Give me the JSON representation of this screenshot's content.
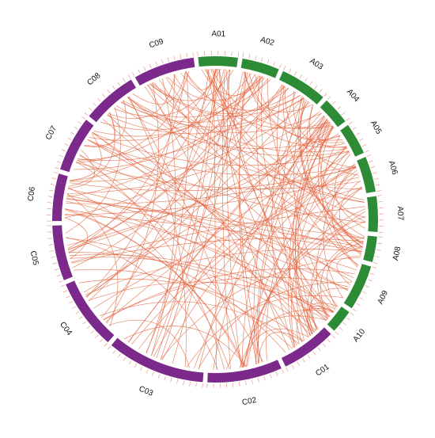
{
  "colors": {
    "A_genome": "#2E8B35",
    "C_genome": "#7B2A8C",
    "links": "#E2603A",
    "ticks": "#E8857A"
  },
  "chromosomes": [
    {
      "name": "A01",
      "genome": "A",
      "length": 1.0
    },
    {
      "name": "A02",
      "genome": "A",
      "length": 0.95
    },
    {
      "name": "A03",
      "genome": "A",
      "length": 1.2
    },
    {
      "name": "A04",
      "genome": "A",
      "length": 0.7
    },
    {
      "name": "A05",
      "genome": "A",
      "length": 0.8
    },
    {
      "name": "A06",
      "genome": "A",
      "length": 0.9
    },
    {
      "name": "A07",
      "genome": "A",
      "length": 0.9
    },
    {
      "name": "A08",
      "genome": "A",
      "length": 0.65
    },
    {
      "name": "A09",
      "genome": "A",
      "length": 1.15
    },
    {
      "name": "A10",
      "genome": "A",
      "length": 0.6
    },
    {
      "name": "C01",
      "genome": "C",
      "length": 1.4
    },
    {
      "name": "C02",
      "genome": "C",
      "length": 1.9
    },
    {
      "name": "C03",
      "genome": "C",
      "length": 2.5
    },
    {
      "name": "C04",
      "genome": "C",
      "length": 1.8
    },
    {
      "name": "C05",
      "genome": "C",
      "length": 1.4
    },
    {
      "name": "C06",
      "genome": "C",
      "length": 1.2
    },
    {
      "name": "C07",
      "genome": "C",
      "length": 1.4
    },
    {
      "name": "C08",
      "genome": "C",
      "length": 1.4
    },
    {
      "name": "C09",
      "genome": "C",
      "length": 1.55
    }
  ]
}
